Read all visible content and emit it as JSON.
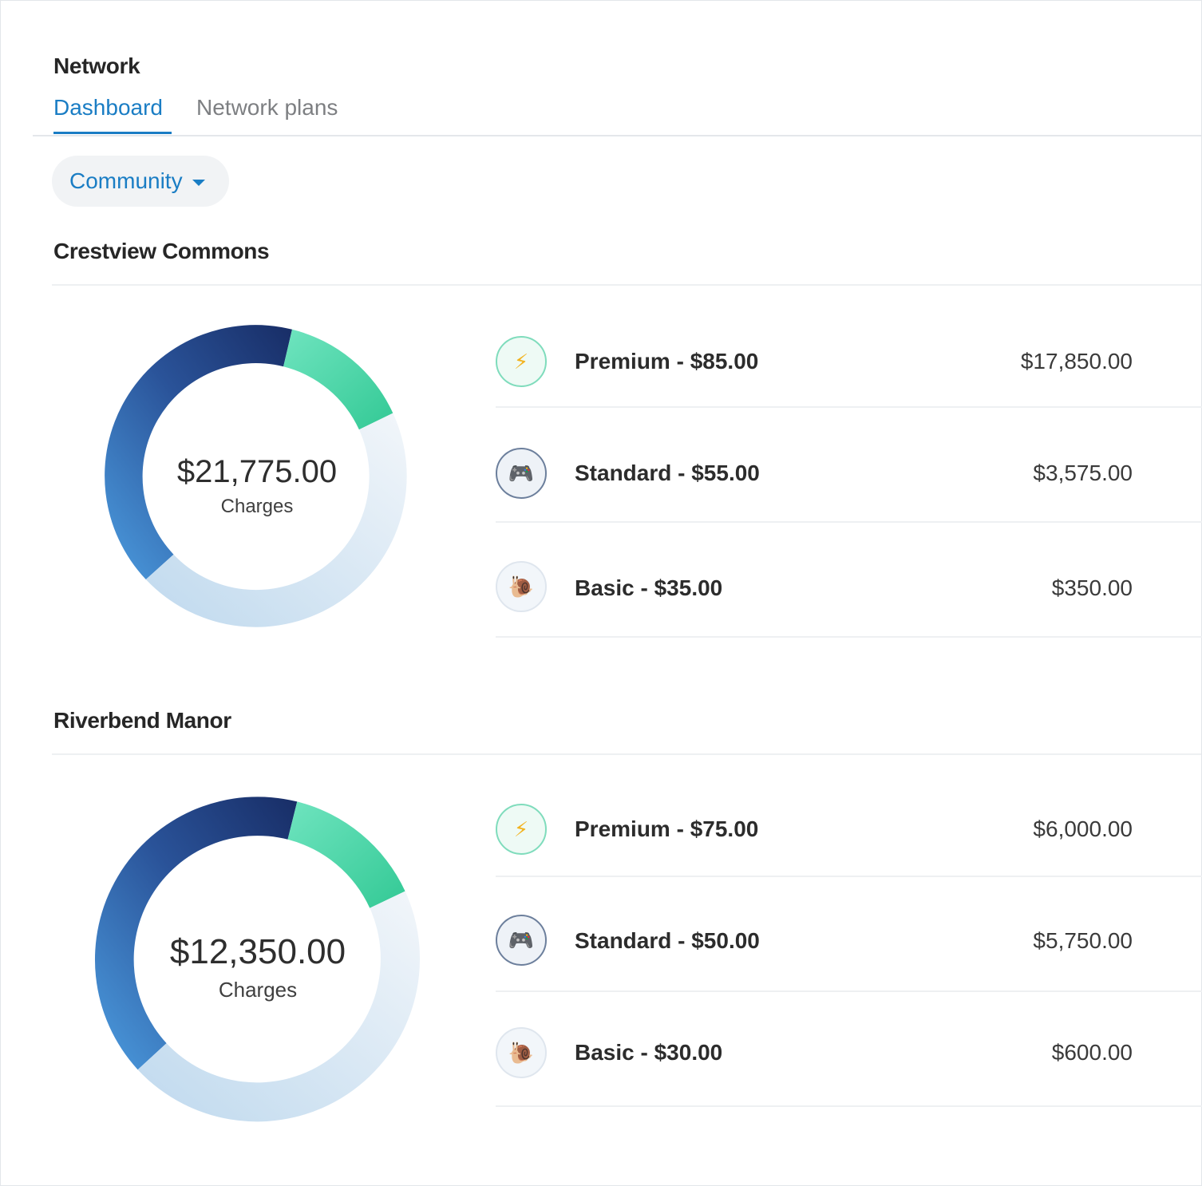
{
  "header": {
    "title": "Network",
    "tabs": [
      {
        "label": "Dashboard",
        "active": true
      },
      {
        "label": "Network plans",
        "active": false
      }
    ]
  },
  "filter": {
    "label": "Community",
    "icon": "caret-down-icon"
  },
  "colors": {
    "accent": "#1a7dc4",
    "premium_segment": "#3ccf9a",
    "standard_segment_dark": "#182d66",
    "standard_segment_light": "#4c9de0",
    "basic_segment": "#c7dcee"
  },
  "communities": [
    {
      "name": "Crestview Commons",
      "total": "$21,775.00",
      "caption": "Charges",
      "plans": [
        {
          "name": "Premium - $85.00",
          "amount": "$17,850.00",
          "icon": "lightning-icon",
          "glyph": "⚡"
        },
        {
          "name": "Standard - $55.00",
          "amount": "$3,575.00",
          "icon": "gamepad-icon",
          "glyph": "🎮"
        },
        {
          "name": "Basic - $35.00",
          "amount": "$350.00",
          "icon": "snail-icon",
          "glyph": "🐌"
        }
      ]
    },
    {
      "name": "Riverbend Manor",
      "total": "$12,350.00",
      "caption": "Charges",
      "plans": [
        {
          "name": "Premium - $75.00",
          "amount": "$6,000.00",
          "icon": "lightning-icon",
          "glyph": "⚡"
        },
        {
          "name": "Standard - $50.00",
          "amount": "$5,750.00",
          "icon": "gamepad-icon",
          "glyph": "🎮"
        },
        {
          "name": "Basic - $30.00",
          "amount": "$600.00",
          "icon": "snail-icon",
          "glyph": "🐌"
        }
      ]
    }
  ]
}
